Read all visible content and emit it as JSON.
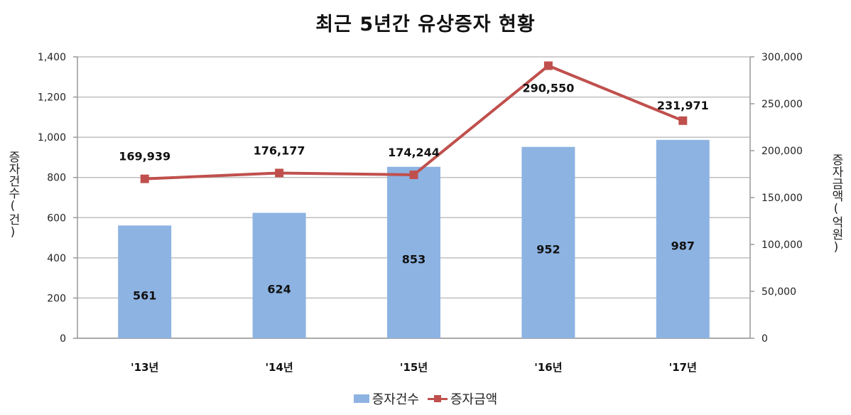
{
  "title": "최근 5년간 유상증자 현황",
  "axes": {
    "left_title": "증자건수(건)",
    "right_title": "증자금액(억원)",
    "left_ticks": [
      "0",
      "200",
      "400",
      "600",
      "800",
      "1,000",
      "1,200",
      "1,400"
    ],
    "right_ticks": [
      "0",
      "50,000",
      "100,000",
      "150,000",
      "200,000",
      "250,000",
      "300,000"
    ]
  },
  "legend": {
    "bar_label": "증자건수",
    "line_label": "증자금액"
  },
  "colors": {
    "bar": "#8DB3E2",
    "line": "#C0504D",
    "grid": "#BFBFBF"
  },
  "chart_data": {
    "type": "bar+line",
    "title": "최근 5년간 유상증자 현황",
    "categories": [
      "'13년",
      "'14년",
      "'15년",
      "'16년",
      "'17년"
    ],
    "series": [
      {
        "name": "증자건수",
        "type": "bar",
        "axis": "left",
        "values": [
          561,
          624,
          853,
          952,
          987
        ],
        "labels": [
          "561",
          "624",
          "853",
          "952",
          "987"
        ]
      },
      {
        "name": "증자금액",
        "type": "line",
        "axis": "right",
        "values": [
          169939,
          176177,
          174244,
          290550,
          231971
        ],
        "labels": [
          "169,939",
          "176,177",
          "174,244",
          "290,550",
          "231,971"
        ]
      }
    ],
    "ylabel_left": "증자건수(건)",
    "ylabel_right": "증자금액(억원)",
    "ylim_left": [
      0,
      1400
    ],
    "ylim_right": [
      0,
      300000
    ],
    "grid": true,
    "legend_position": "bottom"
  }
}
